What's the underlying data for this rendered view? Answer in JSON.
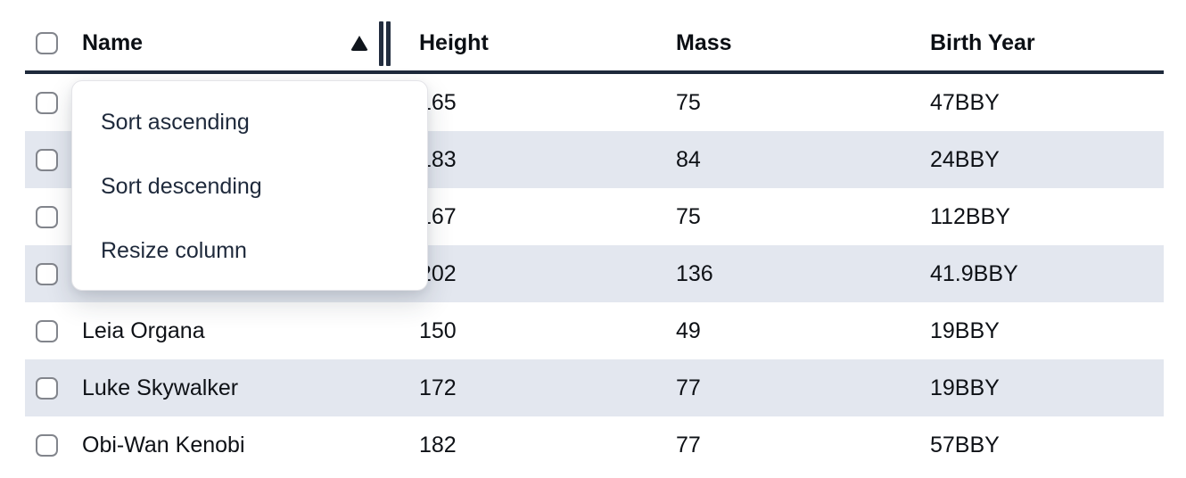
{
  "table": {
    "columns": [
      {
        "label": "Name"
      },
      {
        "label": "Height"
      },
      {
        "label": "Mass"
      },
      {
        "label": "Birth Year"
      }
    ],
    "sorted_column": "Name",
    "sort_direction": "ascending",
    "rows": [
      {
        "name": "",
        "height": "165",
        "mass": "75",
        "birth_year": "47BBY"
      },
      {
        "name": "",
        "height": "183",
        "mass": "84",
        "birth_year": "24BBY"
      },
      {
        "name": "",
        "height": "167",
        "mass": "75",
        "birth_year": "112BBY"
      },
      {
        "name": "",
        "height": "202",
        "mass": "136",
        "birth_year": "41.9BBY"
      },
      {
        "name": "Leia Organa",
        "height": "150",
        "mass": "49",
        "birth_year": "19BBY"
      },
      {
        "name": "Luke Skywalker",
        "height": "172",
        "mass": "77",
        "birth_year": "19BBY"
      },
      {
        "name": "Obi-Wan Kenobi",
        "height": "182",
        "mass": "77",
        "birth_year": "57BBY"
      }
    ]
  },
  "context_menu": {
    "items": [
      {
        "label": "Sort ascending"
      },
      {
        "label": "Sort descending"
      },
      {
        "label": "Resize column"
      }
    ]
  },
  "colors": {
    "row_stripe": "#e3e7ef",
    "header_border": "#1e293b",
    "cell_text": "#0e1116",
    "menu_text": "#1e293b",
    "checkbox_border": "#82858c"
  }
}
